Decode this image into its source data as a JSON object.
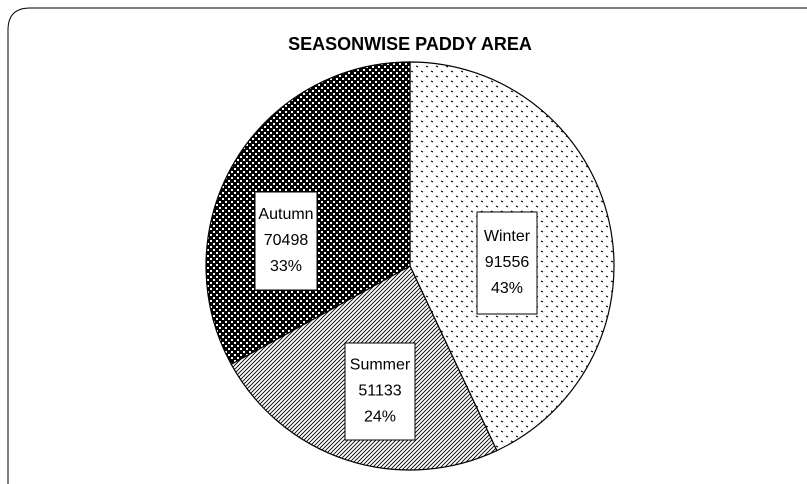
{
  "chart_data": {
    "type": "pie",
    "title": "SEASONWISE PADDY AREA",
    "categories": [
      "Winter",
      "Summer",
      "Autumn"
    ],
    "areas": [
      91556,
      51133,
      70498
    ],
    "values": [
      43,
      24,
      33
    ],
    "value_labels": [
      "43%",
      "24%",
      "33%"
    ]
  }
}
